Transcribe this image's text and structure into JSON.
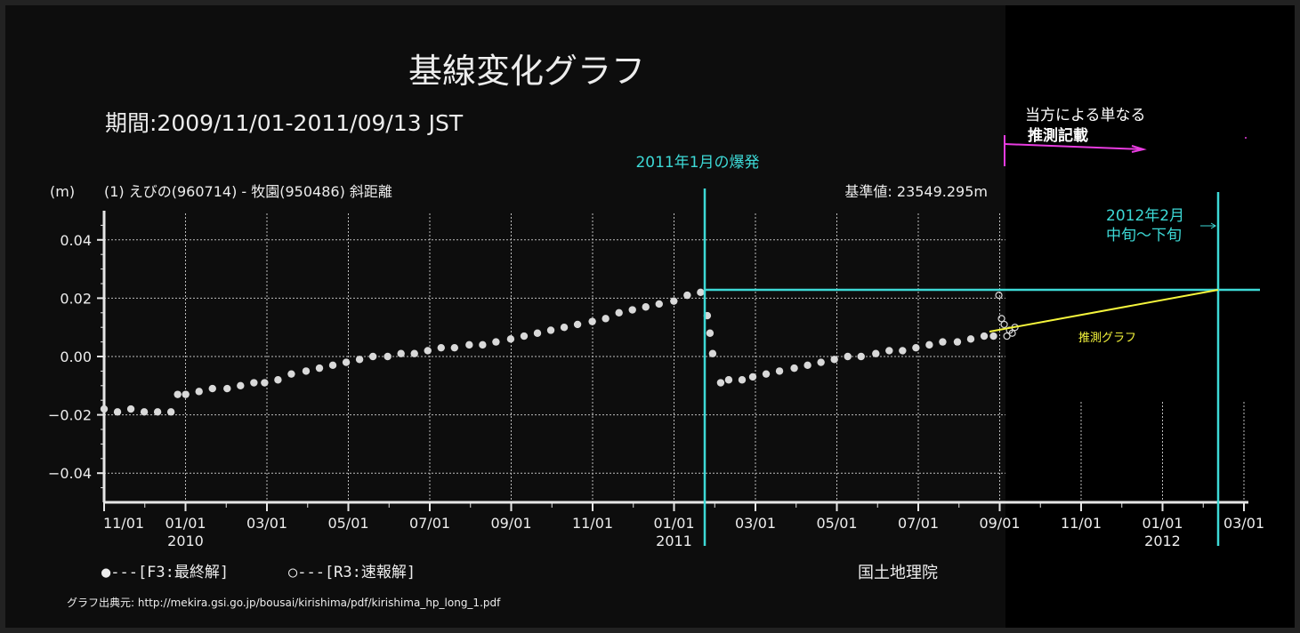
{
  "header": {
    "title": "基線変化グラフ",
    "period": "期間:2009/11/01-2011/09/13 JST",
    "unit": "(m)",
    "baseline_name": "(1) えびの(960714) - 牧園(950486) 斜距離",
    "reference": "基準値: 23549.295m"
  },
  "legend": {
    "final": "●---[F3:最終解]",
    "rapid": "○---[R3:速報解]"
  },
  "credit": "国土地理院",
  "source": "グラフ出典元: http://mekira.gsi.go.jp/bousai/kirishima/pdf/kirishima_hp_long_1.pdf",
  "annotations": {
    "eruption": "2011年1月の爆発",
    "note_line1": "当方による単なる",
    "note_line2": "推測記載",
    "forecast_line1": "2012年2月",
    "forecast_line2": "中旬～下旬",
    "forecast_graph": "推測グラフ"
  },
  "colors": {
    "background": "#0d0d0d",
    "extension_background": "#000000",
    "points": "#d9d9d9",
    "grid": "#bdbdbd",
    "annotation": "#3dd9d6",
    "forecast_line": "#f5f53c",
    "note_arrow": "#e83ce0"
  },
  "chart_data": {
    "type": "scatter",
    "xlabel": "",
    "ylabel": "(m)",
    "ylim": [
      -0.05,
      0.05
    ],
    "x_ticks": [
      "11/01",
      "01/01",
      "03/01",
      "05/01",
      "07/01",
      "09/01",
      "11/01",
      "01/01",
      "03/01",
      "05/01",
      "07/01",
      "09/01",
      "11/01",
      "01/01",
      "03/01"
    ],
    "year_labels": [
      "2010",
      "2011",
      "2012"
    ],
    "y_ticks": [
      "0.04",
      "0.02",
      "0.00",
      "−0.02",
      "−0.04"
    ],
    "y_tick_values": [
      0.04,
      0.02,
      0.0,
      -0.02,
      -0.04
    ],
    "grid": true,
    "series": [
      {
        "name": "F3:最終解",
        "marker": "filled",
        "x": [
          "2009-11-01",
          "2009-11-11",
          "2009-11-21",
          "2009-12-01",
          "2009-12-11",
          "2009-12-21",
          "2009-12-26",
          "2010-01-01",
          "2010-01-11",
          "2010-01-21",
          "2010-02-01",
          "2010-02-11",
          "2010-02-21",
          "2010-03-01",
          "2010-03-11",
          "2010-03-21",
          "2010-04-01",
          "2010-04-11",
          "2010-04-21",
          "2010-05-01",
          "2010-05-11",
          "2010-05-21",
          "2010-06-01",
          "2010-06-11",
          "2010-06-21",
          "2010-07-01",
          "2010-07-11",
          "2010-07-21",
          "2010-08-01",
          "2010-08-11",
          "2010-08-21",
          "2010-09-01",
          "2010-09-11",
          "2010-09-21",
          "2010-10-01",
          "2010-10-11",
          "2010-10-21",
          "2010-11-01",
          "2010-11-11",
          "2010-11-21",
          "2010-12-01",
          "2010-12-11",
          "2010-12-21",
          "2011-01-01",
          "2011-01-11",
          "2011-01-21",
          "2011-01-26",
          "2011-01-28",
          "2011-01-30",
          "2011-02-05",
          "2011-02-11",
          "2011-02-21",
          "2011-03-01",
          "2011-03-11",
          "2011-03-21",
          "2011-04-01",
          "2011-04-11",
          "2011-04-21",
          "2011-05-01",
          "2011-05-11",
          "2011-05-21",
          "2011-06-01",
          "2011-06-11",
          "2011-06-21",
          "2011-07-01",
          "2011-07-11",
          "2011-07-21",
          "2011-08-01",
          "2011-08-11",
          "2011-08-21",
          "2011-08-28"
        ],
        "y": [
          -0.018,
          -0.019,
          -0.018,
          -0.019,
          -0.019,
          -0.019,
          -0.013,
          -0.013,
          -0.012,
          -0.011,
          -0.011,
          -0.01,
          -0.009,
          -0.009,
          -0.008,
          -0.006,
          -0.005,
          -0.004,
          -0.003,
          -0.002,
          -0.001,
          0.0,
          0.0,
          0.001,
          0.001,
          0.002,
          0.003,
          0.003,
          0.004,
          0.004,
          0.005,
          0.006,
          0.007,
          0.008,
          0.009,
          0.01,
          0.011,
          0.012,
          0.013,
          0.015,
          0.016,
          0.017,
          0.018,
          0.019,
          0.021,
          0.022,
          0.014,
          0.008,
          0.001,
          -0.009,
          -0.008,
          -0.008,
          -0.007,
          -0.006,
          -0.005,
          -0.004,
          -0.003,
          -0.002,
          -0.001,
          0.0,
          0.0,
          0.001,
          0.002,
          0.002,
          0.003,
          0.004,
          0.005,
          0.005,
          0.006,
          0.007,
          0.007
        ]
      },
      {
        "name": "R3:速報解",
        "marker": "open",
        "x": [
          "2011-09-01",
          "2011-09-03",
          "2011-09-05",
          "2011-09-07",
          "2011-09-09",
          "2011-09-11",
          "2011-09-13"
        ],
        "y": [
          0.021,
          0.013,
          0.011,
          0.007,
          0.009,
          0.008,
          0.01
        ]
      }
    ]
  }
}
